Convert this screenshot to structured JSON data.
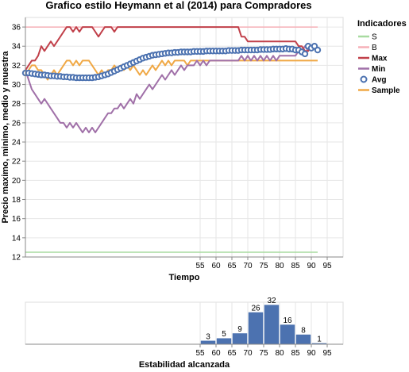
{
  "chart_data": [
    {
      "type": "line",
      "title": "Grafico estilo Heymann et al (2014) para Compradores",
      "xlabel": "Tiempo",
      "ylabel": "Precio maximo, minimo, medio y muestra",
      "ylim": [
        12,
        37
      ],
      "yticks": [
        12,
        14,
        16,
        18,
        20,
        22,
        24,
        26,
        28,
        30,
        32,
        34,
        36
      ],
      "xlim": [
        0,
        100
      ],
      "xticks": [
        55,
        60,
        65,
        70,
        75,
        80,
        85,
        90,
        95
      ],
      "grid": true,
      "legend": {
        "title": "Indicadores",
        "position": "right",
        "entries": [
          {
            "name": "S",
            "color": "#a8dba0",
            "mark": "line"
          },
          {
            "name": "B",
            "color": "#f6b0b8",
            "mark": "line"
          },
          {
            "name": "Max",
            "color": "#c1404a",
            "mark": "line"
          },
          {
            "name": "Min",
            "color": "#a070a8",
            "mark": "line"
          },
          {
            "name": "Avg",
            "color": "#4c72b0",
            "mark": "circle"
          },
          {
            "name": "Sample",
            "color": "#f0a845",
            "mark": "line"
          }
        ]
      },
      "series": [
        {
          "name": "S",
          "color": "#a8dba0",
          "x": [
            0,
            92
          ],
          "y": [
            12.5,
            12.5
          ]
        },
        {
          "name": "B",
          "color": "#f6b0b8",
          "x": [
            0,
            92
          ],
          "y": [
            36,
            36
          ]
        },
        {
          "name": "Max",
          "color": "#c1404a",
          "x": [
            0,
            1,
            2,
            3,
            4,
            5,
            6,
            7,
            8,
            9,
            10,
            11,
            12,
            13,
            14,
            15,
            16,
            17,
            18,
            19,
            20,
            21,
            22,
            23,
            24,
            25,
            26,
            27,
            28,
            29,
            30,
            31,
            32,
            33,
            34,
            35,
            36,
            37,
            38,
            39,
            40,
            41,
            42,
            43,
            44,
            45,
            46,
            47,
            48,
            49,
            50,
            51,
            52,
            53,
            54,
            55,
            56,
            57,
            58,
            59,
            60,
            61,
            62,
            63,
            64,
            65,
            66,
            67,
            68,
            69,
            70,
            71,
            72,
            73,
            74,
            75,
            76,
            77,
            78,
            79,
            80,
            81,
            82,
            83,
            84,
            85,
            86,
            87,
            88,
            89,
            90,
            91,
            92
          ],
          "y": [
            31.5,
            32,
            32.5,
            32.5,
            33,
            34,
            33.5,
            34,
            34.5,
            34,
            34.5,
            35,
            35.5,
            36,
            36,
            35.5,
            36,
            35.5,
            36,
            36,
            36,
            36,
            35.5,
            35,
            35.5,
            36,
            36,
            36,
            35.5,
            36,
            36,
            36,
            36,
            36,
            36,
            36,
            36,
            36,
            36,
            36,
            36,
            36,
            36,
            36,
            36,
            36,
            36,
            36,
            36,
            36,
            36,
            36,
            36,
            36,
            36,
            36,
            36,
            36,
            36,
            36,
            36,
            36,
            36,
            36,
            36,
            36,
            36,
            36,
            35,
            35,
            34.5,
            34.5,
            34.5,
            34.5,
            34.5,
            34.5,
            34.5,
            34.5,
            34.5,
            34.5,
            34.5,
            34.5,
            34.5,
            34.5,
            34.5,
            34.5,
            34,
            34,
            33.5,
            33.5,
            34,
            34,
            33.5
          ]
        },
        {
          "name": "Min",
          "color": "#a070a8",
          "x": [
            0,
            1,
            2,
            3,
            4,
            5,
            6,
            7,
            8,
            9,
            10,
            11,
            12,
            13,
            14,
            15,
            16,
            17,
            18,
            19,
            20,
            21,
            22,
            23,
            24,
            25,
            26,
            27,
            28,
            29,
            30,
            31,
            32,
            33,
            34,
            35,
            36,
            37,
            38,
            39,
            40,
            41,
            42,
            43,
            44,
            45,
            46,
            47,
            48,
            49,
            50,
            51,
            52,
            53,
            54,
            55,
            56,
            57,
            58,
            59,
            60,
            61,
            62,
            63,
            64,
            65,
            66,
            67,
            68,
            69,
            70,
            71,
            72,
            73,
            74,
            75,
            76,
            77,
            78,
            79,
            80,
            81,
            82,
            83,
            84,
            85,
            86,
            87,
            88,
            89,
            90,
            91,
            92
          ],
          "y": [
            31.5,
            30.5,
            29.5,
            29,
            28.5,
            28,
            28.5,
            28,
            27.5,
            27,
            26.5,
            26,
            26,
            25.5,
            26,
            25.5,
            26,
            25.5,
            25,
            25.5,
            25,
            25.5,
            25,
            25.5,
            26,
            26.5,
            27,
            27,
            27.5,
            27.5,
            28,
            27.5,
            28,
            28.5,
            28,
            29,
            28.5,
            29,
            29.5,
            30,
            29.5,
            30,
            30.5,
            31,
            30.5,
            31,
            31.5,
            31,
            31.5,
            32,
            31.5,
            32,
            32,
            32,
            32.5,
            32,
            32.5,
            32,
            32.5,
            32.5,
            32.5,
            32.5,
            32.5,
            32.5,
            32.5,
            32.5,
            32.5,
            32.5,
            33,
            32.5,
            33,
            32.5,
            33,
            32.5,
            33,
            32.5,
            33,
            32.5,
            33,
            32.5,
            33,
            33,
            33,
            33,
            33,
            33,
            33.5,
            33.5,
            34,
            33.5,
            34,
            34,
            33.5
          ]
        },
        {
          "name": "Avg",
          "color": "#4c72b0",
          "x": [
            0,
            1,
            2,
            3,
            4,
            5,
            6,
            7,
            8,
            9,
            10,
            11,
            12,
            13,
            14,
            15,
            16,
            17,
            18,
            19,
            20,
            21,
            22,
            23,
            24,
            25,
            26,
            27,
            28,
            29,
            30,
            31,
            32,
            33,
            34,
            35,
            36,
            37,
            38,
            39,
            40,
            41,
            42,
            43,
            44,
            45,
            46,
            47,
            48,
            49,
            50,
            51,
            52,
            53,
            54,
            55,
            56,
            57,
            58,
            59,
            60,
            61,
            62,
            63,
            64,
            65,
            66,
            67,
            68,
            69,
            70,
            71,
            72,
            73,
            74,
            75,
            76,
            77,
            78,
            79,
            80,
            81,
            82,
            83,
            84,
            85,
            86,
            87,
            88,
            89,
            90,
            91,
            92
          ],
          "y": [
            31.2,
            31.2,
            31.15,
            31.1,
            31.05,
            31.0,
            31.0,
            30.95,
            30.9,
            30.9,
            30.85,
            30.85,
            30.8,
            30.8,
            30.75,
            30.75,
            30.7,
            30.7,
            30.7,
            30.7,
            30.7,
            30.7,
            30.75,
            30.8,
            30.9,
            31.0,
            31.1,
            31.25,
            31.4,
            31.55,
            31.7,
            31.85,
            32.0,
            32.15,
            32.3,
            32.45,
            32.6,
            32.75,
            32.85,
            32.95,
            33.05,
            33.1,
            33.15,
            33.2,
            33.25,
            33.3,
            33.3,
            33.35,
            33.35,
            33.4,
            33.4,
            33.4,
            33.4,
            33.45,
            33.45,
            33.45,
            33.45,
            33.5,
            33.5,
            33.5,
            33.5,
            33.5,
            33.5,
            33.5,
            33.55,
            33.55,
            33.55,
            33.55,
            33.6,
            33.6,
            33.6,
            33.6,
            33.6,
            33.6,
            33.65,
            33.65,
            33.65,
            33.65,
            33.7,
            33.7,
            33.7,
            33.7,
            33.75,
            33.7,
            33.7,
            33.6,
            33.6,
            33.4,
            33.2,
            34,
            33.8,
            34,
            33.6
          ]
        },
        {
          "name": "Sample",
          "color": "#f0a845",
          "x": [
            0,
            1,
            2,
            3,
            4,
            5,
            6,
            7,
            8,
            9,
            10,
            11,
            12,
            13,
            14,
            15,
            16,
            17,
            18,
            19,
            20,
            21,
            22,
            23,
            24,
            25,
            26,
            27,
            28,
            29,
            30,
            31,
            32,
            33,
            34,
            35,
            36,
            37,
            38,
            39,
            40,
            41,
            42,
            43,
            44,
            45,
            46,
            47,
            48,
            49,
            50,
            51,
            52,
            53,
            54,
            55,
            56,
            57,
            58,
            59,
            60,
            61,
            62,
            63,
            64,
            65,
            66,
            67,
            68,
            69,
            70,
            71,
            72,
            73,
            74,
            75,
            76,
            77,
            78,
            79,
            80,
            81,
            82,
            83,
            84,
            85,
            86,
            87,
            88,
            89,
            90,
            91,
            92
          ],
          "y": [
            31,
            31.5,
            32,
            32,
            31.5,
            31.5,
            31,
            30.5,
            31,
            31.5,
            31,
            31.5,
            32,
            32.5,
            32.5,
            32,
            32.5,
            32,
            32.5,
            32.5,
            32.5,
            32,
            31.5,
            31,
            31.5,
            31,
            31.5,
            31.5,
            32,
            31.5,
            32,
            31.5,
            32,
            31.5,
            32,
            31.5,
            31,
            31.5,
            31,
            31.5,
            32,
            31.5,
            32,
            32.5,
            32,
            32.5,
            32,
            32.5,
            32.5,
            32.5,
            32.5,
            32,
            32.5,
            32.5,
            32.5,
            32.5,
            32.5,
            32.5,
            32.5,
            32.5,
            32.5,
            32.5,
            32.5,
            32.5,
            32.5,
            32.5,
            32.5,
            32.5,
            32.5,
            32.5,
            32.5,
            32.5,
            32.5,
            32.5,
            32.5,
            32.5,
            32.5,
            32.5,
            32.5,
            32.5,
            32.5,
            32.5,
            32.5,
            32.5,
            32.5,
            32.5,
            32.5,
            32.5,
            32.5,
            32.5,
            32.5,
            32.5,
            32.5
          ]
        }
      ]
    },
    {
      "type": "bar",
      "title": "",
      "xlabel": "Estabilidad alcanzada",
      "ylabel": "",
      "xlim": [
        0,
        100
      ],
      "xticks": [
        55,
        60,
        65,
        70,
        75,
        80,
        85,
        90,
        95
      ],
      "ylim": [
        0,
        34
      ],
      "color": "#4c72b0",
      "bins": [
        {
          "x0": 55,
          "x1": 60,
          "value": 3
        },
        {
          "x0": 60,
          "x1": 65,
          "value": 5
        },
        {
          "x0": 65,
          "x1": 70,
          "value": 9
        },
        {
          "x0": 70,
          "x1": 75,
          "value": 26
        },
        {
          "x0": 75,
          "x1": 80,
          "value": 32
        },
        {
          "x0": 80,
          "x1": 85,
          "value": 16
        },
        {
          "x0": 85,
          "x1": 90,
          "value": 8
        },
        {
          "x0": 90,
          "x1": 95,
          "value": 1
        }
      ]
    }
  ]
}
